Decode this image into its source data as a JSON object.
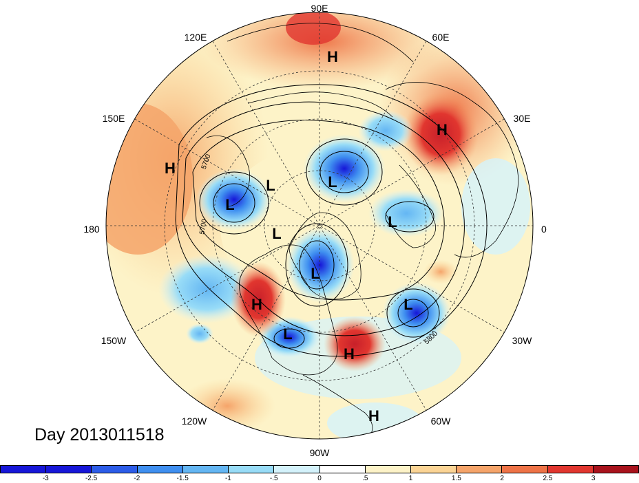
{
  "map": {
    "title": "Day 2013011518",
    "longitude_labels": [
      "90E",
      "60E",
      "30E",
      "0",
      "30W",
      "60W",
      "90W",
      "120W",
      "150W",
      "180",
      "150E",
      "120E"
    ],
    "pressure_systems": [
      "H",
      "H",
      "H",
      "H",
      "H",
      "H",
      "L",
      "L",
      "L",
      "L",
      "L",
      "L",
      "L",
      "L"
    ],
    "contour_labels": [
      "5700",
      "5700",
      "5800"
    ],
    "colors": {
      "ocean_outline": "#000000",
      "grid": "#333333",
      "deep_blue": "#1a1adb",
      "deep_red": "#a8121c"
    }
  },
  "colorbar": {
    "ticks": [
      "-3",
      "-2.5",
      "-2",
      "-1.5",
      "-1",
      "-.5",
      "0",
      ".5",
      "1",
      "1.5",
      "2",
      "2.5",
      "3"
    ],
    "colors": [
      "#1616d8",
      "#2c5ce8",
      "#3f8ff0",
      "#64b6f3",
      "#98dcf7",
      "#d4f2fb",
      "#ffffff",
      "#fdf3c8",
      "#fbd495",
      "#f5a46a",
      "#ee7347",
      "#e1362f",
      "#a8121c"
    ]
  }
}
